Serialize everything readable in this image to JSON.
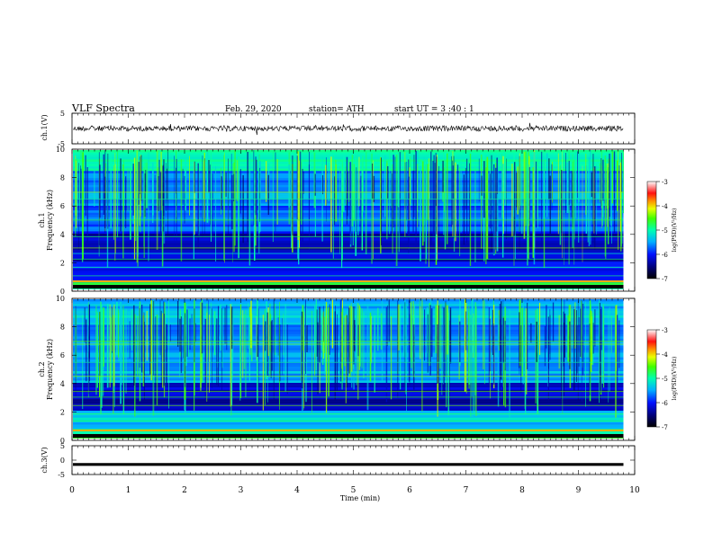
{
  "header": {
    "title": "VLF  Spectra",
    "date": "Feb. 29, 2020",
    "station": "station= ATH",
    "start": "start  UT  =    3  :40 : 1"
  },
  "chart_data": [
    {
      "type": "line",
      "name": "ch1-waveform",
      "ylabel": "ch.1(V)",
      "ylim": [
        -5,
        5
      ],
      "y_ticks": [
        "5",
        "-5"
      ],
      "xlim": [
        0,
        10
      ],
      "note_level": 0
    },
    {
      "type": "heatmap",
      "name": "ch1-spectrogram",
      "ylabel": "ch.1\nFrequency  (kHz)",
      "ylabel_lines": [
        "ch.1",
        "Frequency  (kHz)"
      ],
      "ylim": [
        0,
        10
      ],
      "y_ticks": [
        "0",
        "2",
        "4",
        "6",
        "8",
        "10"
      ],
      "xlim": [
        0,
        10
      ],
      "data_end_min": 9.8
    },
    {
      "type": "heatmap",
      "name": "ch2-spectrogram",
      "ylabel_lines": [
        "ch.2",
        "Frequency  (kHz)"
      ],
      "ylim": [
        0,
        10
      ],
      "y_ticks": [
        "0",
        "2",
        "4",
        "6",
        "8",
        "10"
      ],
      "xlim": [
        0,
        10
      ],
      "data_end_min": 9.8
    },
    {
      "type": "line",
      "name": "ch3-waveform",
      "ylabel": "ch.3(V)",
      "ylim": [
        -5,
        5
      ],
      "y_ticks": [
        "5",
        "0",
        "-5"
      ],
      "xlim": [
        0,
        10
      ],
      "level": -1.5
    }
  ],
  "x_axis": {
    "label": "Time  (min)",
    "ticks": [
      "0",
      "1",
      "2",
      "3",
      "4",
      "5",
      "6",
      "7",
      "8",
      "9",
      "10"
    ]
  },
  "colorbars": [
    {
      "label": "log(PSD)(V²/Hz)",
      "ticks": [
        "-3",
        "-4",
        "-5",
        "-6",
        "-7"
      ],
      "range": [
        -7,
        -3
      ]
    },
    {
      "label": "log(PSD)(V²/Hz)",
      "ticks": [
        "-3",
        "-4",
        "-5",
        "-6",
        "-7"
      ],
      "range": [
        -7,
        -3
      ]
    }
  ]
}
